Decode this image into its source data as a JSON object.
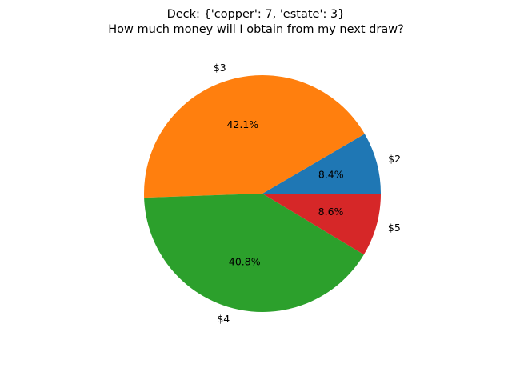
{
  "chart_data": {
    "type": "pie",
    "title_lines": [
      "Deck: {'copper': 7, 'estate': 3}",
      "How much money will I obtain from my next draw?"
    ],
    "labels": [
      "$2",
      "$3",
      "$4",
      "$5"
    ],
    "values": [
      8.4,
      42.1,
      40.8,
      8.6
    ],
    "percent_labels": [
      "8.4%",
      "42.1%",
      "40.8%",
      "8.6%"
    ],
    "colors": [
      "#1f77b4",
      "#ff7f0e",
      "#2ca02c",
      "#d62728"
    ],
    "start_angle_deg": 0,
    "direction": "counterclockwise",
    "legend": "none"
  }
}
